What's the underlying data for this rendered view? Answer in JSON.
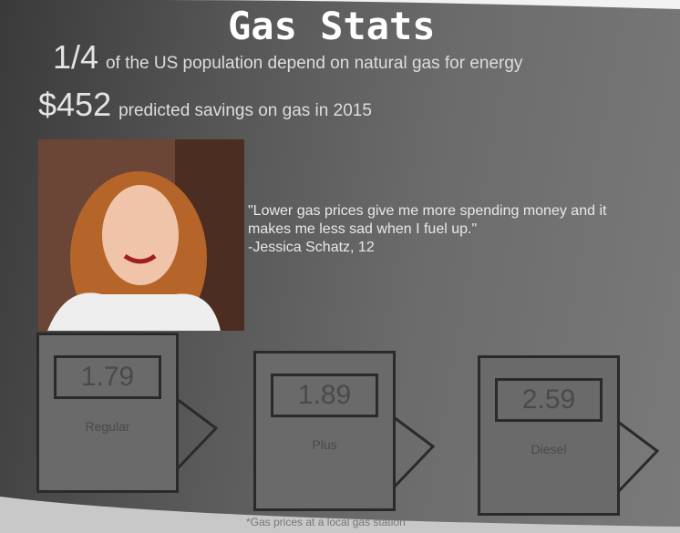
{
  "header": {
    "title": "Gas Stats"
  },
  "stats": [
    {
      "value": "1/4",
      "text": "of the US population depend on natural gas for energy"
    },
    {
      "value": "$452",
      "text": "predicted savings on gas in 2015"
    }
  ],
  "quote": {
    "text": "\"Lower gas prices give me more spending money and it makes me less sad when I fuel up.\"",
    "attribution": "-Jessica Schatz, 12"
  },
  "pumps": [
    {
      "price": "1.79",
      "label": "Regular"
    },
    {
      "price": "1.89",
      "label": "Plus"
    },
    {
      "price": "2.59",
      "label": "Diesel"
    }
  ],
  "footer": {
    "caption": "*Gas prices at a local gas station"
  }
}
